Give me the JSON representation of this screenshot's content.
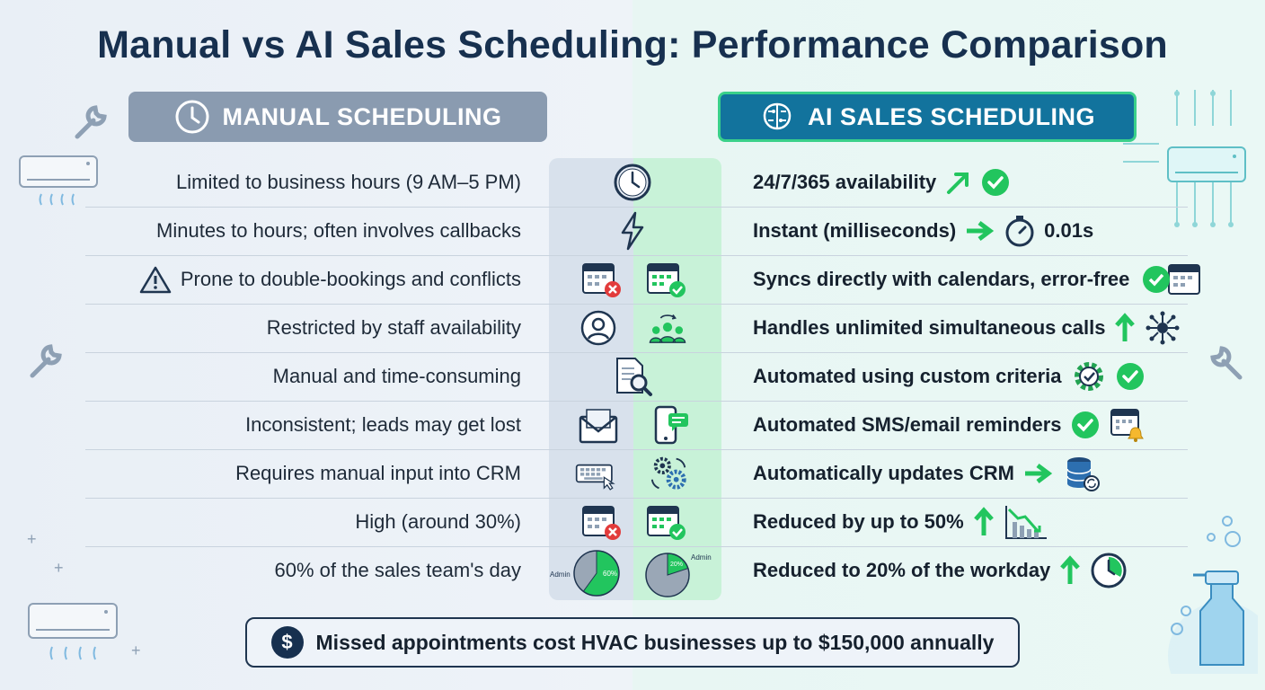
{
  "title": "Manual vs AI Sales Scheduling: Performance Comparison",
  "headers": {
    "manual": "MANUAL SCHEDULING",
    "ai": "AI SALES SCHEDULING"
  },
  "rows": [
    {
      "manual": "Limited to business hours (9 AM–5 PM)",
      "ai": "24/7/365 availability"
    },
    {
      "manual": "Minutes to hours; often involves callbacks",
      "ai": "Instant (milliseconds)",
      "ai_extra": "0.01s"
    },
    {
      "manual": "Prone to double-bookings and conflicts",
      "ai": "Syncs directly with calendars, error-free"
    },
    {
      "manual": "Restricted by staff availability",
      "ai": "Handles unlimited simultaneous calls"
    },
    {
      "manual": "Manual and time-consuming",
      "ai": "Automated using custom criteria"
    },
    {
      "manual": "Inconsistent; leads may get lost",
      "ai": "Automated SMS/email reminders"
    },
    {
      "manual": "Requires manual input into CRM",
      "ai": "Automatically updates CRM"
    },
    {
      "manual": "High (around 30%)",
      "ai": "Reduced by up to 50%"
    },
    {
      "manual": "60% of the sales team's day",
      "ai": "Reduced to 20% of the workday"
    }
  ],
  "pies": {
    "manual": {
      "label": "Admin",
      "value_label": "60%",
      "fraction": 0.6
    },
    "ai": {
      "label": "Admin",
      "value_label": "20%",
      "fraction": 0.2
    }
  },
  "footer": "Missed appointments cost HVAC businesses up to $150,000 annually",
  "footer_symbol": "$",
  "colors": {
    "title": "#17304f",
    "manual_header": "#8a9bb0",
    "ai_header": "#12739d",
    "accent_green": "#22c55e",
    "error_red": "#e23b3b"
  }
}
